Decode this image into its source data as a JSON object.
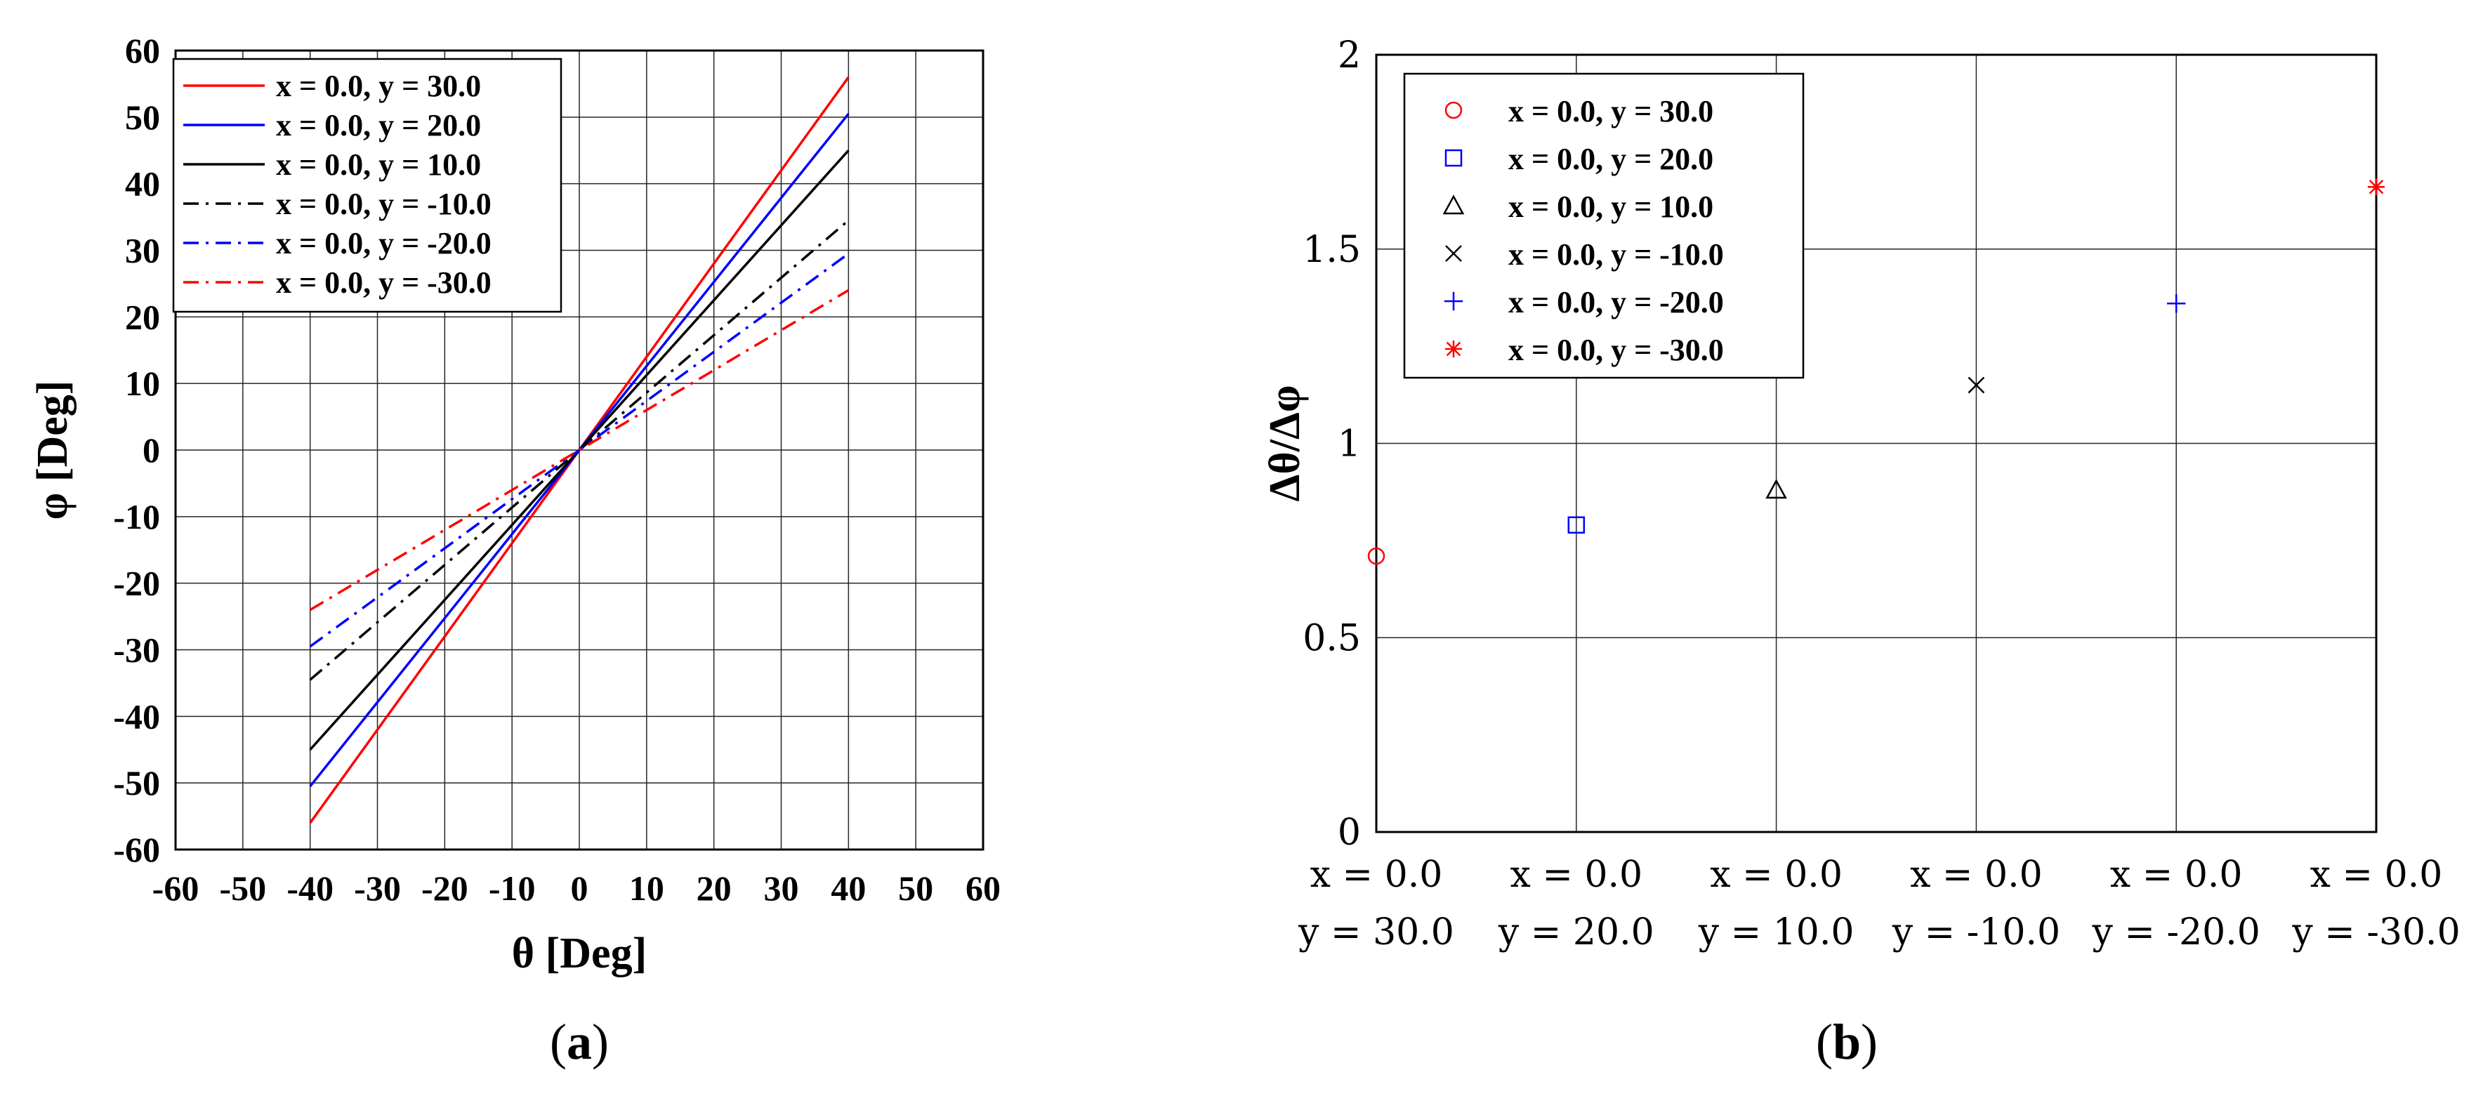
{
  "panel_a": {
    "caption_open": "(",
    "caption_letter": "a",
    "caption_close": ")"
  },
  "panel_b": {
    "caption_open": "(",
    "caption_letter": "b",
    "caption_close": ")"
  },
  "chart_data": [
    {
      "type": "line",
      "title": "",
      "xlabel": "θ [Deg]",
      "ylabel": "φ [Deg]",
      "xlim": [
        -60,
        60
      ],
      "ylim": [
        -60,
        60
      ],
      "xticks": [
        -60,
        -50,
        -40,
        -30,
        -20,
        -10,
        0,
        10,
        20,
        30,
        40,
        50,
        60
      ],
      "yticks": [
        -60,
        -50,
        -40,
        -30,
        -20,
        -10,
        0,
        10,
        20,
        30,
        40,
        50,
        60
      ],
      "grid": true,
      "legend_position": "top-left",
      "series": [
        {
          "name": "x = 0.0, y = 30.0",
          "color": "#ff0000",
          "style": "solid",
          "x": [
            -40,
            40
          ],
          "y": [
            -56,
            56
          ]
        },
        {
          "name": "x = 0.0, y = 20.0",
          "color": "#0000ff",
          "style": "solid",
          "x": [
            -40,
            40
          ],
          "y": [
            -50.5,
            50.5
          ]
        },
        {
          "name": "x = 0.0, y = 10.0",
          "color": "#000000",
          "style": "solid",
          "x": [
            -40,
            40
          ],
          "y": [
            -45,
            45
          ]
        },
        {
          "name": "x = 0.0, y = -10.0",
          "color": "#000000",
          "style": "dashdot",
          "x": [
            -40,
            40
          ],
          "y": [
            -34.5,
            34.5
          ]
        },
        {
          "name": "x = 0.0, y = -20.0",
          "color": "#0000ff",
          "style": "dashdot",
          "x": [
            -40,
            40
          ],
          "y": [
            -29.5,
            29.5
          ]
        },
        {
          "name": "x = 0.0, y = -30.0",
          "color": "#ff0000",
          "style": "dashdot",
          "x": [
            -40,
            40
          ],
          "y": [
            -24,
            24
          ]
        }
      ]
    },
    {
      "type": "scatter",
      "title": "",
      "xlabel": "",
      "ylabel": "Δθ/Δφ",
      "ylim": [
        0,
        2
      ],
      "yticks": [
        "0",
        "0.5",
        "1",
        "1.5",
        "2"
      ],
      "categories": [
        [
          "x = 0.0",
          "y = 30.0"
        ],
        [
          "x = 0.0",
          "y = 20.0"
        ],
        [
          "x = 0.0",
          "y = 10.0"
        ],
        [
          "x = 0.0",
          "y = -10.0"
        ],
        [
          "x = 0.0",
          "y = -20.0"
        ],
        [
          "x = 0.0",
          "y = -30.0"
        ]
      ],
      "grid": true,
      "legend_position": "top-left",
      "series": [
        {
          "name": "x = 0.0, y = 30.0",
          "color": "#ff0000",
          "marker": "circle",
          "x": 1,
          "value": 0.71
        },
        {
          "name": "x = 0.0, y = 20.0",
          "color": "#0000ff",
          "marker": "square",
          "x": 2,
          "value": 0.79
        },
        {
          "name": "x = 0.0, y = 10.0",
          "color": "#000000",
          "marker": "triangle",
          "x": 3,
          "value": 0.88
        },
        {
          "name": "x = 0.0, y = -10.0",
          "color": "#000000",
          "marker": "x",
          "x": 4,
          "value": 1.15
        },
        {
          "name": "x = 0.0, y = -20.0",
          "color": "#0000ff",
          "marker": "plus",
          "x": 5,
          "value": 1.36
        },
        {
          "name": "x = 0.0, y = -30.0",
          "color": "#ff0000",
          "marker": "asterisk",
          "x": 6,
          "value": 1.66
        }
      ]
    }
  ]
}
